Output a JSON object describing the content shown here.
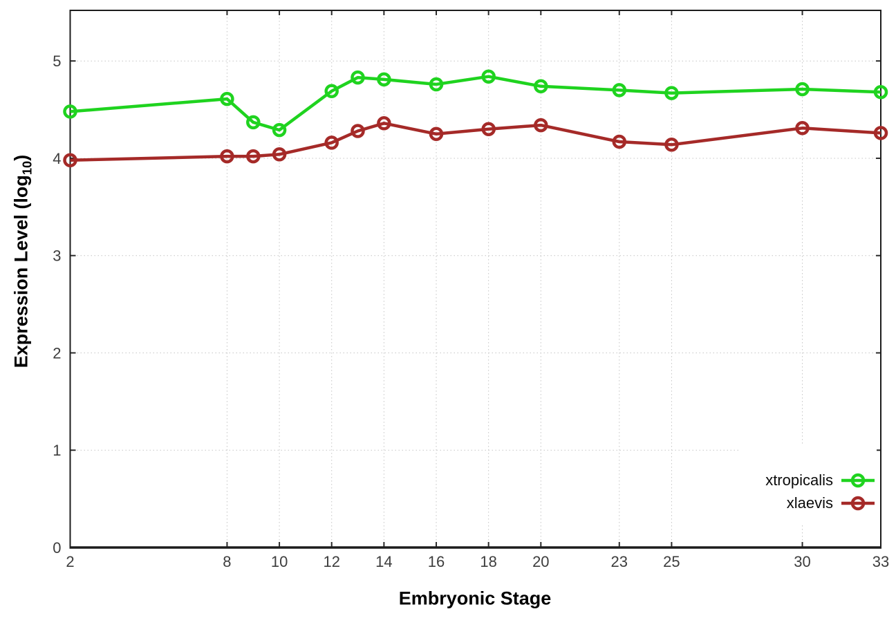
{
  "chart_data": {
    "type": "line",
    "title": "",
    "xlabel": "Embryonic Stage",
    "ylabel": "Expression Level (log10)",
    "ylabel_parts": {
      "main": "Expression Level (log",
      "sub": "10",
      "close": ")"
    },
    "x": [
      2,
      8,
      9,
      10,
      12,
      13,
      14,
      16,
      18,
      20,
      23,
      25,
      30,
      33
    ],
    "x_tick_labels": [
      2,
      8,
      10,
      12,
      14,
      16,
      18,
      20,
      23,
      25,
      30,
      33
    ],
    "y_tick_labels": [
      0,
      1,
      2,
      3,
      4,
      5
    ],
    "xlim": [
      2,
      33
    ],
    "ylim": [
      0,
      5.52
    ],
    "grid": true,
    "legend_position": "inside-right-middle",
    "series": [
      {
        "name": "xtropicalis",
        "color": "#1fd31f",
        "values": [
          4.48,
          4.61,
          4.37,
          4.29,
          4.69,
          4.83,
          4.81,
          4.76,
          4.84,
          4.74,
          4.7,
          4.67,
          4.71,
          4.68
        ]
      },
      {
        "name": "xlaevis",
        "color": "#a52a28",
        "values": [
          3.98,
          4.02,
          4.02,
          4.04,
          4.16,
          4.28,
          4.36,
          4.25,
          4.3,
          4.34,
          4.17,
          4.14,
          4.31,
          4.26
        ]
      }
    ],
    "colors": {
      "grid": "#c4c4c4",
      "border": "#1c1c1c",
      "tick_text": "#3d3d3d",
      "background": "#ffffff"
    }
  }
}
